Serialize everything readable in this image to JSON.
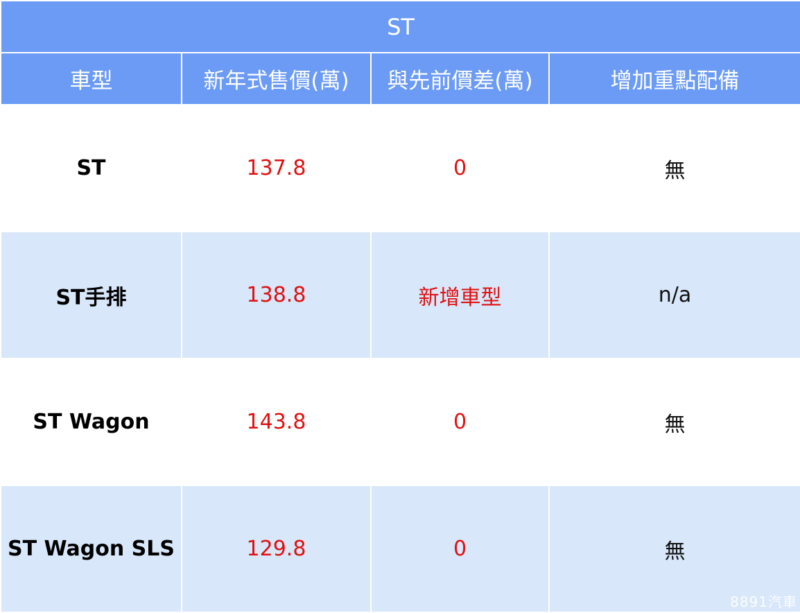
{
  "title": "ST",
  "headers": [
    "車型",
    "新年式售價(萬)",
    "與先前價差(萬)",
    "增加重點配備"
  ],
  "rows": [
    {
      "model": "ST",
      "price": "137.8",
      "diff": "0",
      "equipment": "無"
    },
    {
      "model": "ST手排",
      "price": "138.8",
      "diff": "新增車型",
      "equipment": "n/a"
    },
    {
      "model": "ST Wagon",
      "price": "143.8",
      "diff": "0",
      "equipment": "無"
    },
    {
      "model": "ST Wagon SLS",
      "price": "129.8",
      "diff": "0",
      "equipment": "無"
    }
  ],
  "watermark": "8891汽車",
  "colors": {
    "header_bg": "#6b9bf5",
    "alt_row_bg": "#d8e7f9",
    "value_red": "#e01010"
  }
}
